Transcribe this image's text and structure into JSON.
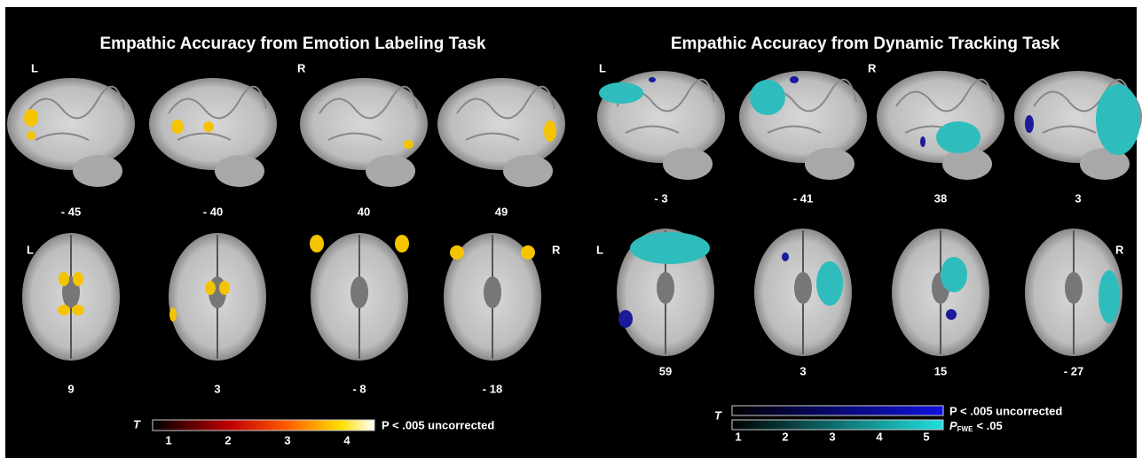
{
  "left": {
    "title": "Empathic Accuracy from Emotion Labeling Task",
    "top_side": [
      "L",
      "R"
    ],
    "bottom_side": [
      "L",
      "R"
    ],
    "top_slices": [
      "- 45",
      "- 40",
      "40",
      "49"
    ],
    "bottom_slices": [
      "9",
      "3",
      "- 8",
      "- 18"
    ],
    "colorbar": {
      "symbol": "T",
      "ticks": [
        1,
        2,
        3,
        4
      ],
      "label": "P < .005 uncorrected"
    }
  },
  "right": {
    "title": "Empathic Accuracy from Dynamic Tracking Task",
    "top_side": [
      "L",
      "R"
    ],
    "bottom_side": [
      "L",
      "R"
    ],
    "top_slices": [
      "- 3",
      "- 41",
      "38",
      "3"
    ],
    "bottom_slices": [
      "59",
      "3",
      "15",
      "- 27"
    ],
    "colorbar": {
      "symbol": "T",
      "ticks": [
        1,
        2,
        3,
        4,
        5
      ],
      "label": "P < .005 uncorrected",
      "label2": {
        "p": "P",
        "sub": "FWE",
        "rest": "< .05"
      }
    }
  }
}
